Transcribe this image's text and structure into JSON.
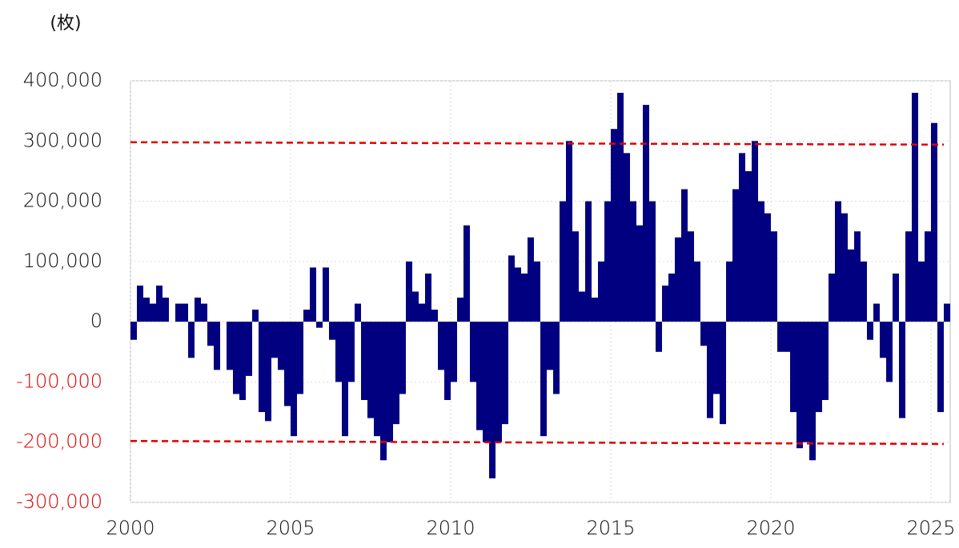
{
  "chart_data": {
    "type": "bar",
    "y_unit_label": "(枚)",
    "color": "#000080",
    "x": [
      2000.0,
      2000.2,
      2000.4,
      2000.6,
      2000.8,
      2001.0,
      2001.2,
      2001.4,
      2001.6,
      2001.8,
      2002.0,
      2002.2,
      2002.4,
      2002.6,
      2002.8,
      2003.0,
      2003.2,
      2003.4,
      2003.6,
      2003.8,
      2004.0,
      2004.2,
      2004.4,
      2004.6,
      2004.8,
      2005.0,
      2005.2,
      2005.4,
      2005.6,
      2005.8,
      2006.0,
      2006.2,
      2006.4,
      2006.6,
      2006.8,
      2007.0,
      2007.2,
      2007.4,
      2007.6,
      2007.8,
      2008.0,
      2008.2,
      2008.4,
      2008.6,
      2008.8,
      2009.0,
      2009.2,
      2009.4,
      2009.6,
      2009.8,
      2010.0,
      2010.2,
      2010.4,
      2010.6,
      2010.8,
      2011.0,
      2011.2,
      2011.4,
      2011.6,
      2011.8,
      2012.0,
      2012.2,
      2012.4,
      2012.6,
      2012.8,
      2013.0,
      2013.2,
      2013.4,
      2013.6,
      2013.8,
      2014.0,
      2014.2,
      2014.4,
      2014.6,
      2014.8,
      2015.0,
      2015.2,
      2015.4,
      2015.6,
      2015.8,
      2016.0,
      2016.2,
      2016.4,
      2016.6,
      2016.8,
      2017.0,
      2017.2,
      2017.4,
      2017.6,
      2017.8,
      2018.0,
      2018.2,
      2018.4,
      2018.6,
      2018.8,
      2019.0,
      2019.2,
      2019.4,
      2019.6,
      2019.8,
      2020.0,
      2020.2,
      2020.4,
      2020.6,
      2020.8,
      2021.0,
      2021.2,
      2021.4,
      2021.6,
      2021.8,
      2022.0,
      2022.2,
      2022.4,
      2022.6,
      2022.8,
      2023.0,
      2023.2,
      2023.4,
      2023.6,
      2023.8,
      2024.0,
      2024.2,
      2024.4,
      2024.6,
      2024.8,
      2025.0,
      2025.2,
      2025.4
    ],
    "values": [
      -30000,
      60000,
      40000,
      30000,
      60000,
      40000,
      0,
      30000,
      30000,
      -60000,
      40000,
      30000,
      -40000,
      -80000,
      0,
      -80000,
      -120000,
      -130000,
      -90000,
      20000,
      -150000,
      -165000,
      -60000,
      -80000,
      -140000,
      -190000,
      -120000,
      20000,
      90000,
      -10000,
      90000,
      -30000,
      -100000,
      -190000,
      -100000,
      30000,
      -130000,
      -160000,
      -190000,
      -230000,
      -200000,
      -170000,
      -120000,
      100000,
      50000,
      30000,
      80000,
      20000,
      -80000,
      -130000,
      -100000,
      40000,
      160000,
      -100000,
      -180000,
      -200000,
      -260000,
      -200000,
      -170000,
      110000,
      90000,
      80000,
      140000,
      100000,
      -190000,
      -80000,
      -120000,
      200000,
      300000,
      150000,
      50000,
      200000,
      40000,
      100000,
      200000,
      320000,
      380000,
      280000,
      200000,
      160000,
      360000,
      200000,
      -50000,
      60000,
      80000,
      140000,
      220000,
      150000,
      100000,
      -40000,
      -160000,
      -120000,
      -170000,
      100000,
      220000,
      280000,
      250000,
      300000,
      200000,
      180000,
      150000,
      -50000,
      -50000,
      -150000,
      -210000,
      -200000,
      -230000,
      -150000,
      -130000,
      80000,
      200000,
      180000,
      120000,
      150000,
      100000,
      -30000,
      30000,
      -60000,
      -100000,
      80000,
      -160000,
      150000,
      380000,
      100000,
      150000,
      330000,
      -150000,
      30000
    ],
    "xlim": [
      2000,
      2025.6
    ],
    "xticks": [
      2000,
      2005,
      2010,
      2015,
      2020,
      2025
    ],
    "ylim": [
      -300000,
      400000
    ],
    "yticks": [
      {
        "value": -300000,
        "label": "-300,000"
      },
      {
        "value": -200000,
        "label": "-200,000"
      },
      {
        "value": -100000,
        "label": "-100,000"
      },
      0,
      {
        "value": 100000,
        "label": "100,000"
      },
      {
        "value": 200000,
        "label": "200,000"
      },
      {
        "value": 300000,
        "label": "300,000"
      },
      {
        "value": 400000,
        "label": "400,000"
      }
    ],
    "negative_tick_color": "#e00000",
    "grid": true,
    "reference_lines": [
      {
        "x": [
          2000,
          2025.4
        ],
        "y": [
          298000,
          294000
        ],
        "color": "#e00000"
      },
      {
        "x": [
          2000,
          2025.4
        ],
        "y": [
          -198000,
          -203000
        ],
        "color": "#e00000"
      }
    ]
  }
}
